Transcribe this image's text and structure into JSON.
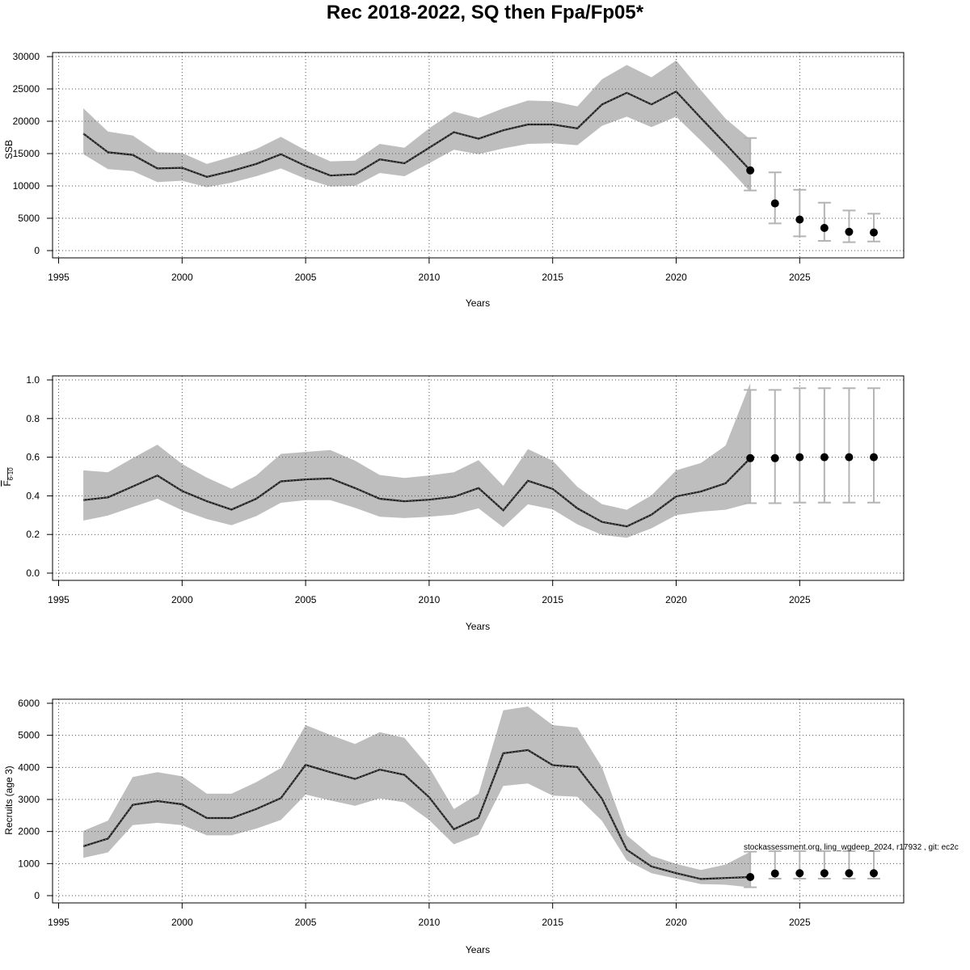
{
  "title": "Rec 2018-2022, SQ then Fpa/Fp05*",
  "footnote": "stockassessment.org, ling_wgdeep_2024, r17932 , git: ec2c",
  "colors": {
    "band": "#bebebe",
    "line": "#1a1a1a",
    "point": "#000000",
    "errorbar": "#b4b4b4",
    "grid": "#555555"
  },
  "chart_data": [
    {
      "type": "line",
      "ylabel": "SSB",
      "xlabel": "Years",
      "xlim": [
        1995,
        2029
      ],
      "ylim": [
        0,
        30000
      ],
      "xticks": [
        1995,
        2000,
        2005,
        2010,
        2015,
        2020,
        2025
      ],
      "yticks": [
        0,
        5000,
        10000,
        15000,
        20000,
        25000,
        30000
      ],
      "grid": true,
      "estimate": {
        "x": [
          1996,
          1997,
          1998,
          1999,
          2000,
          2001,
          2002,
          2003,
          2004,
          2005,
          2006,
          2007,
          2008,
          2009,
          2010,
          2011,
          2012,
          2013,
          2014,
          2015,
          2016,
          2017,
          2018,
          2019,
          2020,
          2021,
          2022,
          2023
        ],
        "y": [
          18100,
          15200,
          14800,
          12700,
          12800,
          11400,
          12300,
          13400,
          14900,
          13100,
          11600,
          11800,
          14100,
          13500,
          15900,
          18300,
          17300,
          18600,
          19500,
          19500,
          18900,
          22600,
          24400,
          22600,
          24600,
          20500,
          16500,
          12400
        ],
        "lower": [
          14900,
          12600,
          12300,
          10600,
          10800,
          9800,
          10500,
          11500,
          12700,
          11100,
          9900,
          10000,
          12000,
          11500,
          13500,
          15600,
          14900,
          15800,
          16500,
          16600,
          16300,
          19300,
          20700,
          19100,
          20700,
          17000,
          13200,
          9100
        ],
        "upper": [
          22000,
          18400,
          17800,
          15200,
          15100,
          13400,
          14500,
          15700,
          17600,
          15500,
          13800,
          13900,
          16500,
          15900,
          18900,
          21500,
          20500,
          22000,
          23200,
          23100,
          22300,
          26500,
          28700,
          26800,
          29400,
          24800,
          20400,
          17200
        ]
      },
      "forecast": {
        "x": [
          2023,
          2024,
          2025,
          2026,
          2027,
          2028
        ],
        "y": [
          12400,
          7300,
          4800,
          3500,
          2900,
          2800
        ],
        "lower": [
          9300,
          4200,
          2200,
          1500,
          1300,
          1400
        ],
        "upper": [
          17400,
          12100,
          9400,
          7400,
          6200,
          5700
        ]
      }
    },
    {
      "type": "line",
      "ylabel": "F",
      "ylabel_sub": "6-10",
      "xlabel": "Years",
      "xlim": [
        1995,
        2029
      ],
      "ylim": [
        0,
        1.0
      ],
      "xticks": [
        1995,
        2000,
        2005,
        2010,
        2015,
        2020,
        2025
      ],
      "yticks": [
        0.0,
        0.2,
        0.4,
        0.6,
        0.8,
        1.0
      ],
      "ytick_labels": [
        "0.0",
        "0.2",
        "0.4",
        "0.6",
        "0.8",
        "1.0"
      ],
      "grid": true,
      "estimate": {
        "x": [
          1996,
          1997,
          1998,
          1999,
          2000,
          2001,
          2002,
          2003,
          2004,
          2005,
          2006,
          2007,
          2008,
          2009,
          2010,
          2011,
          2012,
          2013,
          2014,
          2015,
          2016,
          2017,
          2018,
          2019,
          2020,
          2021,
          2022,
          2023
        ],
        "y": [
          0.378,
          0.392,
          0.448,
          0.505,
          0.425,
          0.372,
          0.329,
          0.385,
          0.475,
          0.485,
          0.49,
          0.44,
          0.385,
          0.372,
          0.38,
          0.395,
          0.44,
          0.325,
          0.478,
          0.436,
          0.335,
          0.265,
          0.242,
          0.302,
          0.397,
          0.422,
          0.465,
          0.595
        ],
        "lower": [
          0.272,
          0.298,
          0.342,
          0.385,
          0.325,
          0.28,
          0.248,
          0.295,
          0.364,
          0.378,
          0.378,
          0.338,
          0.292,
          0.285,
          0.292,
          0.303,
          0.335,
          0.237,
          0.356,
          0.33,
          0.252,
          0.198,
          0.183,
          0.232,
          0.3,
          0.318,
          0.328,
          0.362
        ],
        "upper": [
          0.532,
          0.522,
          0.595,
          0.665,
          0.565,
          0.494,
          0.437,
          0.505,
          0.617,
          0.627,
          0.637,
          0.582,
          0.508,
          0.493,
          0.505,
          0.522,
          0.585,
          0.452,
          0.642,
          0.582,
          0.447,
          0.357,
          0.328,
          0.402,
          0.532,
          0.57,
          0.66,
          0.985
        ]
      },
      "forecast": {
        "x": [
          2023,
          2024,
          2025,
          2026,
          2027,
          2028
        ],
        "y": [
          0.595,
          0.595,
          0.6,
          0.6,
          0.6,
          0.6
        ],
        "lower": [
          0.362,
          0.362,
          0.365,
          0.365,
          0.365,
          0.365
        ],
        "upper": [
          0.948,
          0.948,
          0.957,
          0.957,
          0.957,
          0.957
        ]
      }
    },
    {
      "type": "line",
      "ylabel": "Recruits (age 3)",
      "xlabel": "Years",
      "xlim": [
        1995,
        2029
      ],
      "ylim": [
        0,
        6000
      ],
      "xticks": [
        1995,
        2000,
        2005,
        2010,
        2015,
        2020,
        2025
      ],
      "yticks": [
        0,
        1000,
        2000,
        3000,
        4000,
        5000,
        6000
      ],
      "grid": true,
      "estimate": {
        "x": [
          1996,
          1997,
          1998,
          1999,
          2000,
          2001,
          2002,
          2003,
          2004,
          2005,
          2006,
          2007,
          2008,
          2009,
          2010,
          2011,
          2012,
          2013,
          2014,
          2015,
          2016,
          2017,
          2018,
          2019,
          2020,
          2021,
          2022,
          2023
        ],
        "y": [
          1540,
          1780,
          2830,
          2950,
          2850,
          2420,
          2420,
          2700,
          3040,
          4080,
          3850,
          3640,
          3930,
          3770,
          3070,
          2070,
          2430,
          4440,
          4540,
          4070,
          4010,
          3020,
          1430,
          910,
          700,
          520,
          550,
          580
        ],
        "lower": [
          1180,
          1350,
          2200,
          2270,
          2200,
          1880,
          1880,
          2090,
          2360,
          3150,
          2970,
          2800,
          3030,
          2910,
          2360,
          1600,
          1900,
          3420,
          3500,
          3120,
          3080,
          2330,
          1100,
          700,
          530,
          360,
          340,
          260
        ],
        "upper": [
          2020,
          2340,
          3700,
          3850,
          3720,
          3180,
          3180,
          3540,
          3980,
          5320,
          5010,
          4730,
          5100,
          4920,
          4000,
          2700,
          3180,
          5780,
          5900,
          5320,
          5240,
          4000,
          1880,
          1240,
          990,
          800,
          970,
          1370
        ]
      },
      "forecast": {
        "x": [
          2023,
          2024,
          2025,
          2026,
          2027,
          2028
        ],
        "y": [
          580,
          690,
          700,
          700,
          700,
          700
        ],
        "lower": [
          260,
          530,
          530,
          530,
          530,
          530
        ],
        "upper": [
          1370,
          1390,
          1390,
          1390,
          1390,
          1390
        ]
      }
    }
  ]
}
